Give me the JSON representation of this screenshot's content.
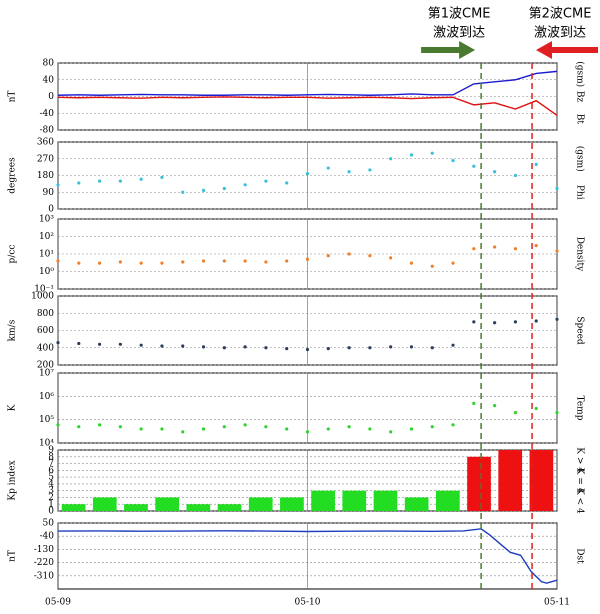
{
  "x_axis": {
    "xlim": [
      0,
      48
    ],
    "xticks": [
      {
        "value": 0,
        "label": "05-09"
      },
      {
        "value": 24,
        "label": "05-10"
      },
      {
        "value": 48,
        "label": "05-11"
      }
    ]
  },
  "events": [
    {
      "lines": [
        "第1波CME",
        "激波到达"
      ],
      "x": 40.7,
      "color": "#4a7a30",
      "arrow": "right"
    },
    {
      "lines": [
        "第2波CME",
        "激波到达"
      ],
      "x": 45.6,
      "color": "#e02020",
      "arrow": "left"
    }
  ],
  "chart_data": [
    {
      "type": "line",
      "ylabel": "nT",
      "ylim": [
        -80,
        80
      ],
      "yticks": [
        -80,
        -40,
        0,
        40,
        80
      ],
      "unit_label": "(gsm)",
      "x": [
        0,
        2,
        4,
        6,
        8,
        10,
        12,
        14,
        16,
        18,
        20,
        22,
        24,
        26,
        28,
        30,
        32,
        34,
        36,
        38,
        40,
        42,
        44,
        46,
        48
      ],
      "series": [
        {
          "name": "Bt",
          "color": "#1a1ad0",
          "values": [
            3,
            4,
            3,
            4,
            5,
            4,
            4,
            3,
            3,
            4,
            4,
            3,
            4,
            5,
            4,
            3,
            4,
            6,
            4,
            4,
            30,
            35,
            40,
            55,
            60
          ]
        },
        {
          "name": "Bz",
          "color": "#e01010",
          "values": [
            -2,
            -3,
            -2,
            -3,
            -4,
            -2,
            -3,
            -2,
            -1,
            -2,
            -3,
            -2,
            -2,
            -4,
            -3,
            -2,
            -3,
            -5,
            -3,
            -2,
            -20,
            -15,
            -30,
            -10,
            -45
          ]
        }
      ]
    },
    {
      "type": "scatter",
      "ylabel": "degrees",
      "ylim": [
        0,
        360
      ],
      "yticks": [
        0,
        90,
        180,
        270,
        360
      ],
      "unit_label": "(gsm)",
      "x": [
        0,
        2,
        4,
        6,
        8,
        10,
        12,
        14,
        16,
        18,
        20,
        22,
        24,
        26,
        28,
        30,
        32,
        34,
        36,
        38,
        40,
        42,
        44,
        46,
        48
      ],
      "series": [
        {
          "name": "Phi",
          "color": "#35c0dc",
          "values": [
            130,
            140,
            150,
            150,
            160,
            170,
            90,
            100,
            110,
            130,
            150,
            140,
            190,
            220,
            200,
            210,
            270,
            290,
            300,
            260,
            230,
            200,
            180,
            240,
            110
          ]
        }
      ]
    },
    {
      "type": "scatter",
      "ylabel": "p/cc",
      "log": true,
      "ylim": [
        0.1,
        1000
      ],
      "yticks": [
        {
          "value": 0.1,
          "label": "10⁻¹"
        },
        {
          "value": 1,
          "label": "10⁰"
        },
        {
          "value": 10,
          "label": "10¹"
        },
        {
          "value": 100,
          "label": "10²"
        },
        {
          "value": 1000,
          "label": "10³"
        }
      ],
      "x": [
        0,
        2,
        4,
        6,
        8,
        10,
        12,
        14,
        16,
        18,
        20,
        22,
        24,
        26,
        28,
        30,
        32,
        34,
        36,
        38,
        40,
        42,
        44,
        46,
        48
      ],
      "series": [
        {
          "name": "Density",
          "color": "#f07f2a",
          "values": [
            4,
            3,
            3,
            3.5,
            3,
            3,
            3.5,
            4,
            4,
            4,
            3.5,
            4,
            5,
            8,
            10,
            8,
            6,
            3,
            2,
            3,
            20,
            25,
            20,
            30,
            15
          ]
        }
      ]
    },
    {
      "type": "scatter",
      "ylabel": "km/s",
      "ylim": [
        200,
        1000
      ],
      "yticks": [
        200,
        400,
        600,
        800,
        1000
      ],
      "x": [
        0,
        2,
        4,
        6,
        8,
        10,
        12,
        14,
        16,
        18,
        20,
        22,
        24,
        26,
        28,
        30,
        32,
        34,
        36,
        38,
        40,
        42,
        44,
        46,
        48
      ],
      "series": [
        {
          "name": "Speed",
          "color": "#2c3e5a",
          "values": [
            460,
            450,
            440,
            440,
            430,
            420,
            420,
            410,
            400,
            410,
            400,
            390,
            380,
            390,
            400,
            400,
            410,
            410,
            400,
            430,
            700,
            690,
            700,
            710,
            730
          ]
        }
      ]
    },
    {
      "type": "scatter",
      "ylabel": "K",
      "log": true,
      "ylim": [
        10000,
        10000000
      ],
      "yticks": [
        {
          "value": 10000,
          "label": "10⁴"
        },
        {
          "value": 100000,
          "label": "10⁵"
        },
        {
          "value": 1000000,
          "label": "10⁶"
        },
        {
          "value": 10000000,
          "label": "10⁷"
        }
      ],
      "x": [
        0,
        2,
        4,
        6,
        8,
        10,
        12,
        14,
        16,
        18,
        20,
        22,
        24,
        26,
        28,
        30,
        32,
        34,
        36,
        38,
        40,
        42,
        44,
        46,
        48
      ],
      "series": [
        {
          "name": "Temp",
          "color": "#2dd42d",
          "values": [
            60000,
            50000,
            60000,
            50000,
            40000,
            40000,
            30000,
            40000,
            50000,
            60000,
            50000,
            40000,
            30000,
            40000,
            50000,
            40000,
            30000,
            40000,
            50000,
            60000,
            500000,
            400000,
            200000,
            300000,
            200000
          ]
        }
      ]
    },
    {
      "type": "bar",
      "ylabel": "Kp index",
      "ylim": [
        0,
        9
      ],
      "yticks": [
        0,
        1,
        2,
        3,
        4,
        5,
        6,
        7,
        8,
        9
      ],
      "x": [
        0,
        3,
        6,
        9,
        12,
        15,
        18,
        21,
        24,
        27,
        30,
        33,
        36,
        39,
        42,
        45
      ],
      "values": [
        1,
        2,
        1,
        2,
        1,
        1,
        2,
        2,
        3,
        3,
        3,
        2,
        3,
        8,
        9,
        9
      ],
      "colors": [
        "#22dd22",
        "#22dd22",
        "#22dd22",
        "#22dd22",
        "#22dd22",
        "#22dd22",
        "#22dd22",
        "#22dd22",
        "#22dd22",
        "#22dd22",
        "#22dd22",
        "#22dd22",
        "#22dd22",
        "#ee1111",
        "#ee1111",
        "#ee1111"
      ],
      "legend": [
        {
          "label": "K < 4",
          "color": "#22dd22"
        },
        {
          "label": "K = 4",
          "color": "#e8c020"
        },
        {
          "label": "K > 4",
          "color": "#ee1111"
        }
      ]
    },
    {
      "type": "line",
      "ylabel": "nT",
      "ylim": [
        -400,
        50
      ],
      "yticks": [
        50,
        -40,
        -130,
        -220,
        -310
      ],
      "x": [
        0,
        4,
        8,
        12,
        16,
        20,
        24,
        28,
        32,
        36,
        39,
        40.7,
        41.5,
        42.5,
        43.5,
        44.5,
        45.5,
        46.5,
        47,
        48
      ],
      "series": [
        {
          "name": "Dst",
          "color": "#1f3fc0",
          "values": [
            -5,
            -4,
            -6,
            -5,
            -3,
            -5,
            -8,
            -6,
            -5,
            -7,
            -4,
            10,
            -30,
            -90,
            -150,
            -170,
            -280,
            -350,
            -360,
            -340
          ]
        }
      ]
    }
  ]
}
